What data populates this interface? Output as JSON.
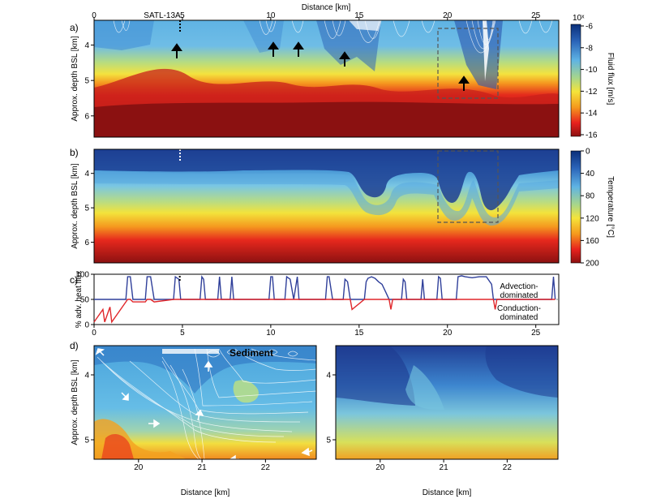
{
  "figure": {
    "panel_letters": [
      "a)",
      "b)",
      "c)",
      "d)"
    ]
  },
  "chart_data": [
    {
      "id": "a",
      "type": "heatmap",
      "title": "",
      "xlabel": "Distance [km]",
      "ylabel": "Approx. depth BSL [km]",
      "xlim": [
        0,
        26.3
      ],
      "ylim": [
        3.3,
        6.6
      ],
      "x_ticks": [
        0,
        5,
        10,
        15,
        20,
        25
      ],
      "y_ticks": [
        4,
        5,
        6
      ],
      "well_label": "SATL-13A",
      "well_x": 4.85,
      "colorbar": {
        "label": "Fluid flux [m/s]",
        "exponent_label": "10ˣ",
        "ticks": [
          -6,
          -8,
          -10,
          -12,
          -14,
          -16
        ],
        "colors": [
          "#0a2f7a",
          "#2a63b8",
          "#5fb3e4",
          "#a8d68a",
          "#f5e43a",
          "#f59a1d",
          "#e8211e",
          "#8c1010"
        ]
      },
      "arrows_x_km": [
        4.5,
        10.0,
        11.5,
        14.2,
        20.8
      ],
      "inset_box_km": {
        "x": [
          19.3,
          22.8
        ],
        "depth": [
          3.3,
          5.3
        ]
      }
    },
    {
      "id": "b",
      "type": "heatmap",
      "title": "",
      "xlabel": "",
      "ylabel": "Approx. depth BSL [km]",
      "xlim": [
        0,
        26.3
      ],
      "ylim": [
        3.3,
        6.6
      ],
      "y_ticks": [
        4,
        5,
        6
      ],
      "colorbar": {
        "label": "Temperature [°C]",
        "ticks": [
          0,
          40,
          80,
          120,
          160,
          200
        ],
        "colors": [
          "#0a2f7a",
          "#2a63b8",
          "#5fb3e4",
          "#a8d68a",
          "#f5e43a",
          "#f59a1d",
          "#e8211e",
          "#8c1010"
        ]
      },
      "inset_box_km": {
        "x": [
          19.3,
          22.8
        ],
        "depth": [
          3.3,
          5.3
        ]
      }
    },
    {
      "id": "c",
      "type": "line",
      "title": "",
      "xlabel": "",
      "ylabel": "% adv. heat flux",
      "xlim": [
        0,
        26.3
      ],
      "ylim": [
        0,
        100
      ],
      "x_ticks": [
        0,
        5,
        10,
        15,
        20,
        25
      ],
      "y_ticks": [
        0,
        50,
        100
      ],
      "threshold": 50,
      "series": [
        {
          "name": "Advection-dominated",
          "color": "#2f3f9a",
          "x": [
            0,
            0.5,
            0.6,
            0.9,
            1.0,
            1.8,
            1.9,
            2.05,
            2.2,
            2.9,
            3.0,
            3.2,
            3.4,
            4.5,
            4.6,
            4.8,
            4.9,
            6.0,
            6.1,
            6.2,
            6.3,
            7.0,
            7.1,
            7.2,
            7.7,
            7.8,
            7.9,
            8.8,
            9.9,
            10.0,
            10.1,
            10.2,
            10.8,
            10.9,
            11.1,
            11.3,
            11.5,
            11.6,
            13.1,
            13.2,
            13.3,
            13.5,
            14.1,
            14.2,
            14.35,
            14.5,
            14.6,
            15.3,
            15.4,
            15.5,
            15.7,
            15.9,
            16.1,
            16.3,
            16.5,
            16.7,
            16.8,
            16.9,
            17.4,
            17.5,
            17.6,
            17.7,
            18.5,
            18.6,
            18.7,
            19.4,
            19.5,
            19.6,
            19.7,
            20.5,
            20.6,
            20.8,
            21.0,
            21.4,
            21.8,
            22.2,
            22.5,
            22.6,
            22.7,
            22.8,
            25.9,
            26.0,
            26.1
          ],
          "y": [
            5,
            30,
            5,
            35,
            5,
            45,
            95,
            95,
            45,
            45,
            95,
            95,
            45,
            50,
            95,
            90,
            50,
            50,
            95,
            90,
            50,
            50,
            95,
            50,
            50,
            95,
            50,
            50,
            50,
            95,
            95,
            50,
            50,
            95,
            90,
            50,
            95,
            50,
            50,
            95,
            95,
            50,
            50,
            90,
            85,
            50,
            30,
            50,
            85,
            92,
            95,
            92,
            85,
            80,
            65,
            50,
            30,
            50,
            50,
            90,
            85,
            50,
            50,
            90,
            50,
            50,
            95,
            92,
            50,
            50,
            95,
            97,
            95,
            93,
            95,
            95,
            80,
            50,
            30,
            50,
            50,
            95,
            50
          ]
        },
        {
          "name": "Conduction-dominated",
          "color": "#e0262a",
          "x": [
            0,
            0.5,
            0.6,
            0.9,
            1.0,
            1.8,
            1.9,
            2.05,
            2.2,
            2.9,
            3.0,
            3.2,
            3.4,
            4.5,
            4.6,
            4.8,
            4.9,
            6.0,
            6.1,
            6.2,
            6.3,
            7.0,
            7.1,
            7.2,
            7.7,
            7.8,
            7.9,
            8.8,
            9.9,
            10.0,
            10.1,
            10.2,
            10.8,
            10.9,
            11.1,
            11.3,
            11.5,
            11.6,
            13.1,
            13.2,
            13.3,
            13.5,
            14.1,
            14.2,
            14.35,
            14.5,
            14.6,
            15.3,
            15.4,
            15.5,
            15.7,
            15.9,
            16.1,
            16.3,
            16.5,
            16.7,
            16.8,
            16.9,
            17.4,
            17.5,
            17.6,
            17.7,
            18.5,
            18.6,
            18.7,
            19.4,
            19.5,
            19.6,
            19.7,
            20.5,
            20.6,
            20.8,
            21.0,
            21.4,
            21.8,
            22.2,
            22.5,
            22.6,
            22.7,
            22.8,
            25.9,
            26.0,
            26.1
          ],
          "y": [
            5,
            30,
            5,
            35,
            5,
            45,
            95,
            95,
            45,
            45,
            95,
            95,
            45,
            50,
            95,
            90,
            50,
            50,
            95,
            90,
            50,
            50,
            95,
            50,
            50,
            95,
            50,
            50,
            50,
            95,
            95,
            50,
            50,
            95,
            90,
            50,
            95,
            50,
            50,
            95,
            95,
            50,
            50,
            90,
            85,
            50,
            30,
            50,
            85,
            92,
            95,
            92,
            85,
            80,
            65,
            50,
            30,
            50,
            50,
            90,
            85,
            50,
            50,
            90,
            50,
            50,
            95,
            92,
            50,
            50,
            95,
            97,
            95,
            93,
            95,
            95,
            80,
            50,
            30,
            50,
            50,
            95,
            50
          ]
        }
      ],
      "legend": [
        "Advection-\ndominated",
        "Conduction-\ndominated"
      ],
      "well_x": 4.85
    },
    {
      "id": "d-left",
      "type": "heatmap",
      "title": "",
      "xlabel": "Distance [km]",
      "ylabel": "Approx. depth BSL [km]",
      "xlim": [
        19.3,
        22.8
      ],
      "ylim": [
        3.55,
        5.3
      ],
      "x_ticks": [
        20,
        21,
        22
      ],
      "y_ticks": [
        4,
        5
      ],
      "annotation": "Sediment",
      "field": "fluid flux"
    },
    {
      "id": "d-right",
      "type": "heatmap",
      "title": "",
      "xlabel": "Distance [km]",
      "ylabel": "",
      "xlim": [
        19.3,
        22.8
      ],
      "ylim": [
        3.55,
        5.3
      ],
      "x_ticks": [
        20,
        21,
        22
      ],
      "y_ticks": [
        4,
        5
      ],
      "field": "temperature"
    }
  ]
}
